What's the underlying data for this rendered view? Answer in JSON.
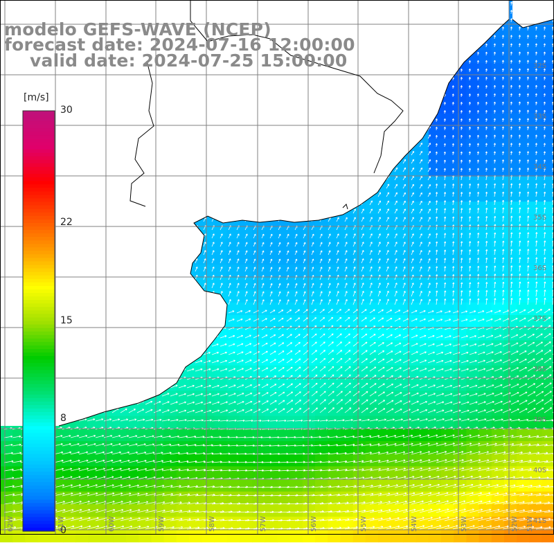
{
  "title": {
    "line1": "modelo GEFS-WAVE (NCEP)",
    "line2": "forecast date: 2024-07-16 12:00:00",
    "line3": "valid date: 2024-07-25 15:00:00"
  },
  "colorbar": {
    "unit": "[m/s]",
    "min": 0,
    "max": 30,
    "tick_labels": [
      "30",
      "22",
      "15",
      "8",
      "0"
    ],
    "tick_values": [
      30,
      22,
      15,
      8,
      0
    ],
    "colors": [
      "#0000ff",
      "#0080ff",
      "#00c8ff",
      "#00ffff",
      "#00e070",
      "#00cc00",
      "#a0e000",
      "#ffff00",
      "#ffa000",
      "#ff5000",
      "#ff0000",
      "#e0006a",
      "#c0107a"
    ]
  },
  "map": {
    "lat_labels": [
      "32S",
      "33S",
      "34S",
      "35S",
      "36S",
      "37S",
      "38S",
      "39S",
      "40S",
      "41S"
    ],
    "lon_labels": [
      "62W",
      "61W",
      "60W",
      "59W",
      "58W",
      "57W",
      "56W",
      "55W",
      "54W",
      "53W",
      "52W",
      "51W"
    ],
    "land_color": "#ffffff",
    "coast_color": "#000000",
    "grid_color": "#808080",
    "arrow_color": "#ffffff"
  }
}
